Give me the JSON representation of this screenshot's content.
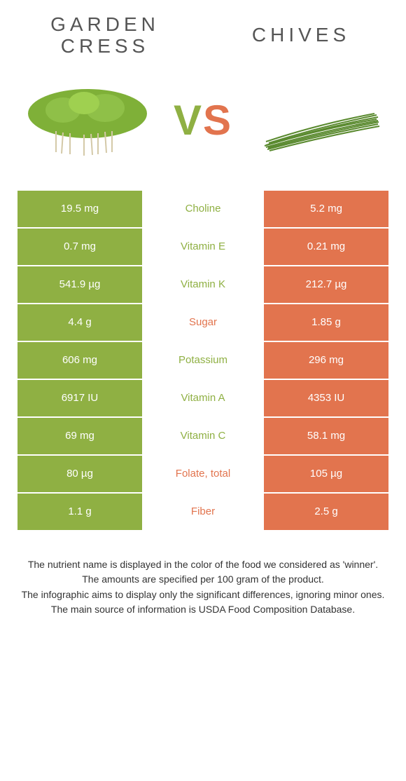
{
  "colors": {
    "left_bg": "#8fb043",
    "right_bg": "#e2744e",
    "left_text": "#8fb043",
    "right_text": "#e2744e",
    "cell_text": "#ffffff",
    "background": "#ffffff"
  },
  "header": {
    "left_title": "GARDEN CRESS",
    "right_title": "CHIVES",
    "vs_v": "V",
    "vs_s": "S"
  },
  "rows": [
    {
      "left": "19.5 mg",
      "label": "Choline",
      "right": "5.2 mg",
      "winner": "left"
    },
    {
      "left": "0.7 mg",
      "label": "Vitamin E",
      "right": "0.21 mg",
      "winner": "left"
    },
    {
      "left": "541.9 µg",
      "label": "Vitamin K",
      "right": "212.7 µg",
      "winner": "left"
    },
    {
      "left": "4.4 g",
      "label": "Sugar",
      "right": "1.85 g",
      "winner": "right"
    },
    {
      "left": "606 mg",
      "label": "Potassium",
      "right": "296 mg",
      "winner": "left"
    },
    {
      "left": "6917 IU",
      "label": "Vitamin A",
      "right": "4353 IU",
      "winner": "left"
    },
    {
      "left": "69 mg",
      "label": "Vitamin C",
      "right": "58.1 mg",
      "winner": "left"
    },
    {
      "left": "80 µg",
      "label": "Folate, total",
      "right": "105 µg",
      "winner": "right"
    },
    {
      "left": "1.1 g",
      "label": "Fiber",
      "right": "2.5 g",
      "winner": "right"
    }
  ],
  "footer": [
    "The nutrient name is displayed in the color of the food we considered as 'winner'.",
    "The amounts are specified per 100 gram of the product.",
    "The infographic aims to display only the significant differences, ignoring minor ones.",
    "The main source of information is USDA Food Composition Database."
  ]
}
